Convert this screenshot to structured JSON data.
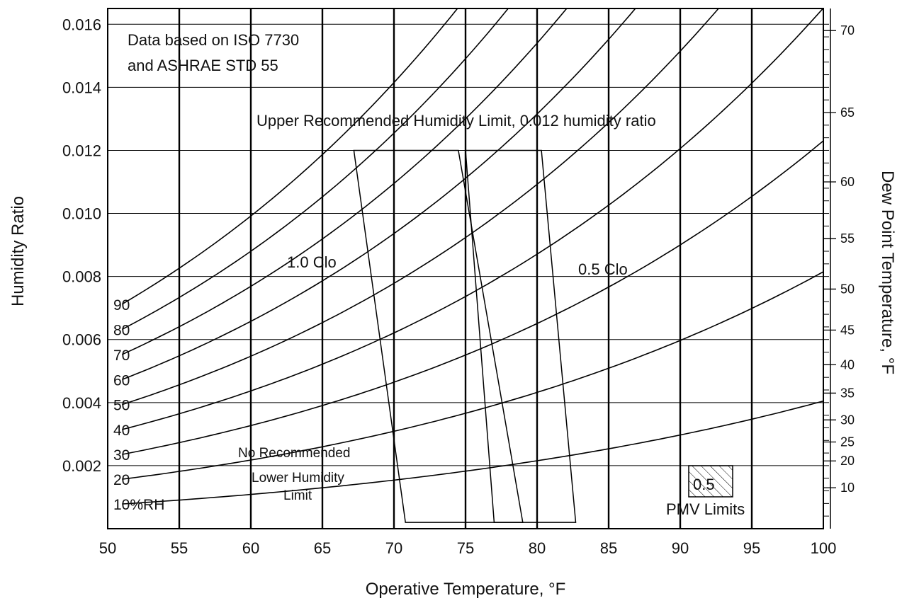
{
  "chart_data": {
    "type": "psychrometric",
    "title": "",
    "xlabel": "Operative Temperature, °F",
    "ylabel": "Humidity Ratio",
    "y2label": "Dew Point Temperature, °F",
    "xlim": [
      50,
      100
    ],
    "ylim": [
      0,
      0.0165
    ],
    "x_ticks": [
      "50",
      "55",
      "60",
      "65",
      "70",
      "75",
      "80",
      "85",
      "90",
      "95",
      "100"
    ],
    "y_ticks": [
      {
        "value": 0.002,
        "label": "0.002"
      },
      {
        "value": 0.004,
        "label": "0.004"
      },
      {
        "value": 0.006,
        "label": "0.006"
      },
      {
        "value": 0.008,
        "label": "0.008"
      },
      {
        "value": 0.01,
        "label": "0.010"
      },
      {
        "value": 0.012,
        "label": "0.012"
      },
      {
        "value": 0.014,
        "label": "0.014"
      },
      {
        "value": 0.016,
        "label": "0.016"
      }
    ],
    "dew_point_ticks": [
      {
        "label": "10",
        "w": 0.0013
      },
      {
        "label": "20",
        "w": 0.00215
      },
      {
        "label": "25",
        "w": 0.00275
      },
      {
        "label": "30",
        "w": 0.00345
      },
      {
        "label": "35",
        "w": 0.0043
      },
      {
        "label": "40",
        "w": 0.0052
      },
      {
        "label": "45",
        "w": 0.0063
      },
      {
        "label": "50",
        "w": 0.0076
      },
      {
        "label": "55",
        "w": 0.0092
      },
      {
        "label": "60",
        "w": 0.011
      },
      {
        "label": "65",
        "w": 0.0132
      },
      {
        "label": "70",
        "w": 0.0158
      }
    ],
    "rh_curves": [
      {
        "label": "10%RH",
        "rh": 10
      },
      {
        "label": "20",
        "rh": 20
      },
      {
        "label": "30",
        "rh": 30
      },
      {
        "label": "40",
        "rh": 40
      },
      {
        "label": "50",
        "rh": 50
      },
      {
        "label": "60",
        "rh": 60
      },
      {
        "label": "70",
        "rh": 70
      },
      {
        "label": "80",
        "rh": 80
      },
      {
        "label": "90",
        "rh": 90
      }
    ],
    "comfort_zones": [
      {
        "name": "1.0 Clo",
        "polygon": [
          [
            67.2,
            0.012
          ],
          [
            74.5,
            0.012
          ],
          [
            79.0,
            0.0002
          ],
          [
            70.8,
            0.0002
          ]
        ]
      },
      {
        "name": "0.5 Clo",
        "polygon": [
          [
            75.0,
            0.012
          ],
          [
            80.3,
            0.012
          ],
          [
            82.7,
            0.0002
          ],
          [
            77.0,
            0.0002
          ]
        ]
      }
    ],
    "annotations": {
      "source_line1": "Data based on ISO 7730",
      "source_line2": "and ASHRAE STD 55",
      "upper_limit": "Upper Recommended Humidity Limit, 0.012 humidity ratio",
      "lower_line1": "No Recommended",
      "lower_line2": "Lower Humidity",
      "lower_line3": "Limit",
      "clo_1": "1.0 Clo",
      "clo_05": "0.5 Clo",
      "legend_box": "0.5",
      "legend_label": "PMV Limits"
    }
  }
}
